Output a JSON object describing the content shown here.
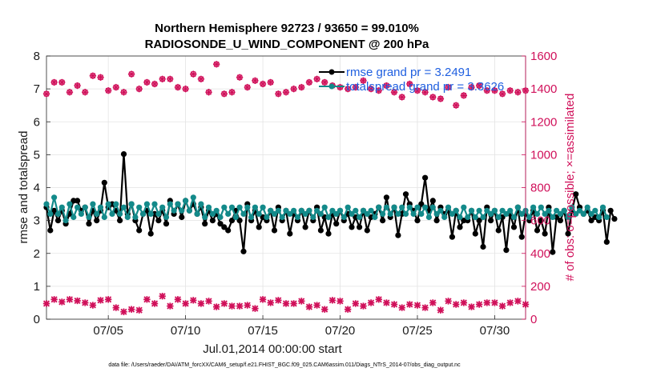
{
  "chart_data": {
    "type": "line",
    "title": "Northern Hemisphere 92723 / 93650 = 99.010%",
    "subtitle": "RADIOSONDE_U_WIND_COMPONENT @ 200 hPa",
    "xlabel": "Jul.01,2014 00:00:00 start",
    "ylabel": "rmse and totalspread",
    "ylabel_right": "# of obs: o=possible; ×=assimilated",
    "footer": "data file: /Users/raeder/DAI/ATM_forcXX/CAM6_setup/f.e21.FHIST_BGC.f09_025.CAM6assim.011/Diags_NTrS_2014-07/obs_diag_output.nc",
    "xlim": [
      1,
      32
    ],
    "ylim": [
      0,
      8
    ],
    "ylim_right": [
      0,
      1600
    ],
    "x_ticks": [
      5,
      10,
      15,
      20,
      25,
      30
    ],
    "x_tick_labels": [
      "07/05",
      "07/10",
      "07/15",
      "07/20",
      "07/25",
      "07/30"
    ],
    "y_ticks": [
      0,
      1,
      2,
      3,
      4,
      5,
      6,
      7,
      8
    ],
    "y_tick_labels": [
      "0",
      "1",
      "2",
      "3",
      "4",
      "5",
      "6",
      "7",
      "8"
    ],
    "y_ticks_right": [
      0,
      200,
      400,
      600,
      800,
      1000,
      1200,
      1400,
      1600
    ],
    "y_tick_labels_right": [
      "0",
      "200",
      "400",
      "600",
      "800",
      "1000",
      "1200",
      "1400",
      "1600"
    ],
    "grid": true,
    "legend_position": "top-right",
    "colors": {
      "rmse": "#000000",
      "totalspread": "#138a8a",
      "obs": "#d0105a",
      "legend_text": "#1f5fe0"
    },
    "series": [
      {
        "name": "rmse grand pr = 3.2491",
        "axis": "left",
        "style": "line-marker",
        "x_start": 1,
        "x_step": 0.25,
        "values": [
          3.4,
          2.7,
          3.3,
          3.0,
          3.3,
          2.9,
          3.2,
          3.6,
          3.6,
          3.3,
          3.4,
          2.9,
          3.3,
          3.0,
          3.3,
          4.15,
          3.4,
          3.5,
          3.3,
          3.0,
          5.02,
          3.2,
          3.5,
          3.0,
          2.7,
          3.2,
          3.3,
          2.6,
          3.2,
          3.0,
          3.3,
          2.9,
          3.6,
          3.2,
          3.5,
          3.1,
          3.6,
          3.3,
          3.5,
          3.2,
          3.4,
          2.9,
          3.3,
          3.0,
          3.2,
          2.9,
          2.8,
          2.7,
          3.0,
          3.3,
          3.0,
          2.06,
          3.5,
          3.0,
          3.3,
          2.8,
          3.1,
          3.0,
          3.3,
          2.7,
          3.4,
          3.0,
          3.3,
          2.6,
          3.2,
          3.0,
          3.3,
          2.8,
          3.3,
          3.0,
          3.4,
          2.7,
          3.1,
          2.6,
          3.2,
          2.9,
          3.3,
          3.0,
          3.2,
          2.8,
          3.1,
          2.8,
          3.3,
          2.7,
          3.1,
          3.2,
          3.4,
          3.0,
          3.7,
          3.1,
          3.4,
          2.55,
          3.2,
          3.8,
          3.5,
          3.3,
          3.0,
          3.5,
          4.3,
          3.3,
          3.6,
          3.0,
          3.4,
          3.2,
          3.3,
          2.5,
          3.3,
          2.8,
          3.0,
          3.0,
          3.3,
          2.6,
          3.0,
          2.2,
          3.4,
          3.0,
          3.3,
          2.7,
          3.1,
          2.1,
          3.2,
          2.8,
          3.4,
          2.5,
          3.2,
          3.0,
          3.3,
          2.7,
          3.0,
          2.6,
          3.4,
          2.04,
          3.1,
          3.0,
          3.3,
          2.6,
          3.3,
          3.8,
          3.4,
          3.2,
          3.3,
          3.0,
          3.1,
          3.0,
          3.3,
          2.35,
          3.3,
          3.05
        ]
      },
      {
        "name": "totalspread grand pr = 3.3626",
        "axis": "left",
        "style": "line-marker",
        "x_start": 1,
        "x_step": 0.25,
        "values": [
          3.5,
          3.2,
          3.7,
          3.2,
          3.4,
          3.0,
          3.5,
          3.1,
          3.4,
          3.2,
          3.4,
          3.1,
          3.5,
          3.2,
          3.4,
          3.1,
          3.5,
          3.2,
          3.5,
          3.2,
          3.4,
          3.1,
          3.5,
          3.1,
          3.4,
          3.2,
          3.5,
          3.2,
          3.5,
          3.2,
          3.4,
          3.1,
          3.5,
          3.3,
          3.5,
          3.3,
          3.6,
          3.3,
          3.7,
          3.2,
          3.5,
          3.1,
          3.4,
          3.2,
          3.3,
          3.1,
          3.4,
          3.2,
          3.4,
          3.1,
          3.4,
          3.2,
          3.4,
          3.1,
          3.4,
          3.2,
          3.4,
          3.1,
          3.3,
          3.2,
          3.3,
          3.1,
          3.3,
          3.2,
          3.3,
          3.1,
          3.3,
          3.2,
          3.3,
          3.1,
          3.3,
          3.2,
          3.4,
          3.1,
          3.3,
          3.2,
          3.3,
          3.1,
          3.4,
          3.2,
          3.3,
          3.1,
          3.3,
          3.2,
          3.3,
          3.1,
          3.4,
          3.2,
          3.4,
          3.2,
          3.4,
          3.2,
          3.4,
          3.2,
          3.4,
          3.2,
          3.4,
          3.2,
          3.4,
          3.1,
          3.4,
          3.2,
          3.3,
          3.1,
          3.4,
          3.2,
          3.3,
          3.1,
          3.4,
          3.1,
          3.3,
          3.1,
          3.3,
          3.1,
          3.3,
          3.2,
          3.3,
          3.1,
          3.3,
          3.2,
          3.3,
          3.1,
          3.4,
          3.2,
          3.3,
          3.1,
          3.4,
          3.2,
          3.4,
          3.2,
          3.3,
          3.1,
          3.3,
          3.2,
          3.3,
          3.1,
          3.4,
          3.2,
          3.3,
          3.2,
          3.4,
          3.2,
          3.3,
          3.1,
          3.4,
          3.1
        ]
      },
      {
        "name": "obs possible",
        "axis": "right",
        "style": "marker-o",
        "x_start": 1,
        "x_step": 0.5,
        "values": [
          1370,
          1440,
          1440,
          1380,
          1420,
          1380,
          1480,
          1470,
          1390,
          1410,
          1380,
          1490,
          1400,
          1440,
          1430,
          1460,
          1460,
          1410,
          1400,
          1490,
          1460,
          1380,
          1550,
          1370,
          1380,
          1470,
          1410,
          1450,
          1430,
          1440,
          1370,
          1380,
          1400,
          1410,
          1440,
          1460,
          1440,
          1420,
          1410,
          1400,
          1410,
          1450,
          1400,
          1390,
          1420,
          1380,
          1350,
          1430,
          1390,
          1380,
          1350,
          1340,
          1410,
          1300,
          1360,
          1410,
          1420,
          1390,
          1390,
          1370,
          1390,
          1380,
          1390
        ],
        "clip": true
      },
      {
        "name": "obs assimilated",
        "axis": "right",
        "style": "marker-x",
        "x_start": 1,
        "x_step": 0.5,
        "values": [
          95,
          120,
          105,
          120,
          112,
          100,
          85,
          115,
          120,
          70,
          45,
          60,
          55,
          120,
          95,
          140,
          80,
          120,
          95,
          115,
          95,
          110,
          75,
          95,
          80,
          80,
          85,
          65,
          120,
          100,
          115,
          95,
          95,
          110,
          75,
          85,
          60,
          115,
          110,
          60,
          95,
          80,
          100,
          120,
          100,
          90,
          70,
          90,
          85,
          70,
          100,
          55,
          110,
          90,
          100,
          75,
          90,
          100,
          100,
          80,
          100,
          110,
          90
        ]
      }
    ]
  }
}
